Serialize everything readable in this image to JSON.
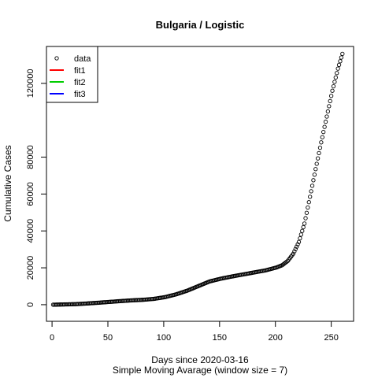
{
  "chart_data": {
    "type": "scatter",
    "title": "Bulgaria / Logistic",
    "xlabel": "Days since 2020-03-16",
    "xlabel2": "Simple Moving Avarage (window size = 7)",
    "ylabel": "Cumulative Cases",
    "xlim": [
      -5,
      270
    ],
    "ylim": [
      -9000,
      140000
    ],
    "x_ticks": [
      0,
      50,
      100,
      150,
      200,
      250
    ],
    "x_tick_labels": [
      "0",
      "50",
      "100",
      "150",
      "200",
      "250"
    ],
    "y_ticks": [
      0,
      20000,
      40000,
      60000,
      80000,
      120000
    ],
    "y_tick_labels": [
      "0",
      "20000",
      "40000",
      "60000",
      "80000",
      "120000"
    ],
    "legend_position": "top-left",
    "legend": [
      {
        "label": "data",
        "kind": "point",
        "color": "#000000"
      },
      {
        "label": "fit1",
        "kind": "line",
        "color": "#ff0000"
      },
      {
        "label": "fit2",
        "kind": "line",
        "color": "#00cd00"
      },
      {
        "label": "fit3",
        "kind": "line",
        "color": "#0000ff"
      }
    ],
    "series": [
      {
        "name": "data",
        "x": [
          1,
          11,
          21,
          31,
          41,
          51,
          61,
          71,
          81,
          91,
          101,
          111,
          121,
          131,
          141,
          151,
          161,
          171,
          181,
          191,
          201,
          206,
          211,
          216,
          221,
          226,
          231,
          236,
          241,
          246,
          251,
          256,
          260
        ],
        "y": [
          0,
          150,
          300,
          650,
          1050,
          1500,
          1950,
          2350,
          2650,
          3150,
          4100,
          5600,
          7600,
          10100,
          12600,
          14100,
          15300,
          16400,
          17500,
          18600,
          20200,
          21400,
          23700,
          27600,
          34000,
          44000,
          58500,
          73500,
          88000,
          102000,
          116000,
          128000,
          136000
        ]
      }
    ]
  }
}
